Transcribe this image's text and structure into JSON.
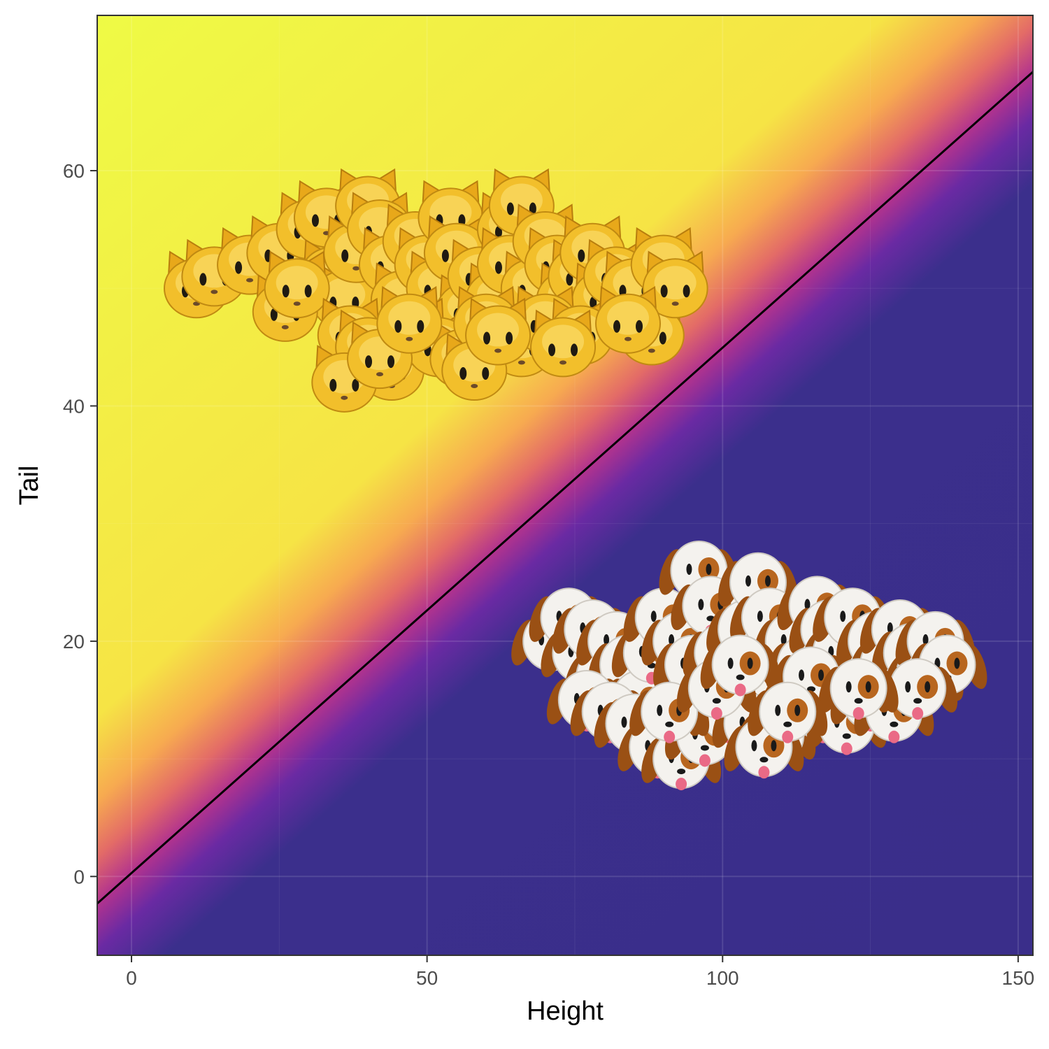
{
  "chart_data": {
    "type": "scatter",
    "title": "",
    "xlabel": "Height",
    "ylabel": "Tail",
    "xlim": [
      -5.8,
      152.5
    ],
    "ylim": [
      -6.7,
      73.2
    ],
    "x_ticks": [
      0,
      50,
      100,
      150
    ],
    "y_ticks": [
      0,
      20,
      40,
      60
    ],
    "grid": true,
    "legend": "none",
    "background": "filled probability contour (plasma palette)",
    "decision_boundary": {
      "x": [
        -5.8,
        152.5
      ],
      "y": [
        -2.3,
        68.4
      ]
    },
    "series": [
      {
        "marker_icon": "cat-face-emoji",
        "points": [
          [
            11,
            50
          ],
          [
            14,
            51
          ],
          [
            20,
            52
          ],
          [
            25,
            53
          ],
          [
            30,
            55
          ],
          [
            33,
            56
          ],
          [
            34,
            51
          ],
          [
            36,
            49
          ],
          [
            38,
            53
          ],
          [
            40,
            57
          ],
          [
            42,
            55
          ],
          [
            44,
            52
          ],
          [
            46,
            49
          ],
          [
            48,
            54
          ],
          [
            50,
            52
          ],
          [
            52,
            50
          ],
          [
            54,
            56
          ],
          [
            55,
            53
          ],
          [
            57,
            48
          ],
          [
            59,
            51
          ],
          [
            62,
            49
          ],
          [
            64,
            55
          ],
          [
            64,
            52
          ],
          [
            66,
            57
          ],
          [
            68,
            50
          ],
          [
            70,
            54
          ],
          [
            72,
            52
          ],
          [
            74,
            49
          ],
          [
            76,
            51
          ],
          [
            78,
            53
          ],
          [
            80,
            49
          ],
          [
            82,
            51
          ],
          [
            85,
            50
          ],
          [
            88,
            46
          ],
          [
            90,
            52
          ],
          [
            92,
            50
          ],
          [
            26,
            48
          ],
          [
            28,
            50
          ],
          [
            37,
            46
          ],
          [
            40,
            45
          ],
          [
            44,
            43
          ],
          [
            48,
            46
          ],
          [
            52,
            45
          ],
          [
            56,
            44
          ],
          [
            60,
            47
          ],
          [
            66,
            45
          ],
          [
            70,
            47
          ],
          [
            76,
            46
          ],
          [
            84,
            47
          ],
          [
            36,
            42
          ],
          [
            42,
            44
          ],
          [
            58,
            43
          ],
          [
            47,
            47
          ],
          [
            62,
            46
          ],
          [
            73,
            45
          ]
        ]
      },
      {
        "marker_icon": "dog-face-emoji",
        "points": [
          [
            71,
            20
          ],
          [
            74,
            22
          ],
          [
            76,
            19
          ],
          [
            78,
            21
          ],
          [
            80,
            17
          ],
          [
            82,
            20
          ],
          [
            84,
            18
          ],
          [
            86,
            15
          ],
          [
            88,
            19
          ],
          [
            90,
            22
          ],
          [
            93,
            20
          ],
          [
            95,
            18
          ],
          [
            96,
            26
          ],
          [
            98,
            23
          ],
          [
            100,
            19
          ],
          [
            102,
            17
          ],
          [
            104,
            21
          ],
          [
            106,
            25
          ],
          [
            108,
            22
          ],
          [
            110,
            16
          ],
          [
            112,
            20
          ],
          [
            114,
            18
          ],
          [
            116,
            23
          ],
          [
            118,
            21
          ],
          [
            120,
            19
          ],
          [
            122,
            22
          ],
          [
            124,
            17
          ],
          [
            126,
            20
          ],
          [
            128,
            18
          ],
          [
            130,
            21
          ],
          [
            132,
            19
          ],
          [
            134,
            17
          ],
          [
            136,
            20
          ],
          [
            138,
            18
          ],
          [
            77,
            15
          ],
          [
            81,
            14
          ],
          [
            85,
            13
          ],
          [
            89,
            11
          ],
          [
            93,
            10
          ],
          [
            97,
            12
          ],
          [
            101,
            14
          ],
          [
            105,
            13
          ],
          [
            109,
            12
          ],
          [
            113,
            15
          ],
          [
            117,
            14
          ],
          [
            121,
            13
          ],
          [
            125,
            15
          ],
          [
            129,
            14
          ],
          [
            133,
            16
          ],
          [
            91,
            14
          ],
          [
            99,
            16
          ],
          [
            107,
            11
          ],
          [
            115,
            17
          ],
          [
            123,
            16
          ],
          [
            103,
            18
          ],
          [
            111,
            14
          ]
        ]
      }
    ]
  }
}
